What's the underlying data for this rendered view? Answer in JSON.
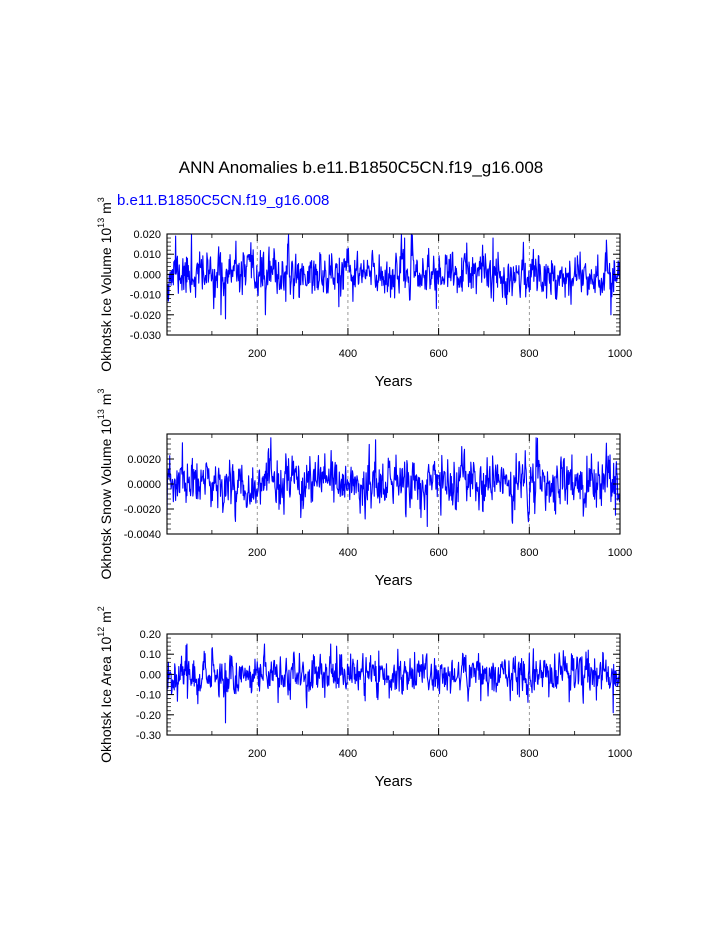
{
  "figure": {
    "title": "ANN Anomalies b.e11.B1850C5CN.f19_g16.008",
    "subtitle": "b.e11.B1850C5CN.f19_g16.008",
    "subtitle_color": "#0000ff",
    "line_color": "#0000ff",
    "grid_color": "#808080"
  },
  "chart_data": [
    {
      "type": "line",
      "ylabel": {
        "before": "Okhotsk Ice Volume 10",
        "exp": "13",
        "mid": " m",
        "exp2": "3"
      },
      "xlabel": "Years",
      "xlim": [
        1,
        1000
      ],
      "ylim": [
        -0.03,
        0.02
      ],
      "xticks": [
        200,
        400,
        600,
        800,
        1000
      ],
      "xtick_labels": [
        "200",
        "400",
        "600",
        "800",
        "1000"
      ],
      "yticks": [
        -0.03,
        -0.02,
        -0.01,
        0.0,
        0.01,
        0.02
      ],
      "ytick_labels": [
        "-0.030",
        "-0.020",
        "-0.010",
        "0.000",
        "0.010",
        "0.020"
      ],
      "grid": "vertical dashed at major x ticks",
      "series": [
        {
          "values": {
            "n": 1000,
            "seed": 11,
            "sd": 0.0055,
            "min": -0.022,
            "max": 0.02,
            "anchors": [
              [
                1,
                -0.014
              ],
              [
                20,
                0.019
              ],
              [
                55,
                0.02
              ],
              [
                120,
                -0.02
              ],
              [
                130,
                -0.022
              ],
              [
                218,
                -0.02
              ],
              [
                380,
                -0.016
              ],
              [
                525,
                0.018
              ],
              [
                720,
                0.018
              ],
              [
                980,
                -0.02
              ]
            ]
          }
        }
      ]
    },
    {
      "type": "line",
      "ylabel": {
        "before": "Okhotsk Snow Volume 10",
        "exp": "13",
        "mid": " m",
        "exp2": "3"
      },
      "xlabel": "Years",
      "xlim": [
        1,
        1000
      ],
      "ylim": [
        -0.004,
        0.004
      ],
      "xticks": [
        200,
        400,
        600,
        800,
        1000
      ],
      "xtick_labels": [
        "200",
        "400",
        "600",
        "800",
        "1000"
      ],
      "yticks": [
        -0.004,
        -0.002,
        0.0,
        0.002
      ],
      "ytick_labels": [
        "-0.0040",
        "-0.0020",
        "0.0000",
        "0.0020"
      ],
      "grid": "vertical dashed at major x ticks",
      "series": [
        {
          "values": {
            "n": 1000,
            "seed": 23,
            "sd": 0.001,
            "min": -0.0034,
            "max": 0.0037,
            "anchors": [
              [
                1,
                -0.0025
              ],
              [
                35,
                0.0033
              ],
              [
                575,
                -0.0034
              ],
              [
                815,
                0.0037
              ],
              [
                990,
                -0.0025
              ]
            ]
          }
        }
      ]
    },
    {
      "type": "line",
      "ylabel": {
        "before": "Okhotsk Ice Area 10",
        "exp": "12",
        "mid": " m",
        "exp2": "2"
      },
      "xlabel": "Years",
      "xlim": [
        1,
        1000
      ],
      "ylim": [
        -0.3,
        0.2
      ],
      "xticks": [
        200,
        400,
        600,
        800,
        1000
      ],
      "xtick_labels": [
        "200",
        "400",
        "600",
        "800",
        "1000"
      ],
      "yticks": [
        -0.3,
        -0.2,
        -0.1,
        0.0,
        0.1,
        0.2
      ],
      "ytick_labels": [
        "-0.30",
        "-0.20",
        "-0.10",
        "0.00",
        "0.10",
        "0.20"
      ],
      "grid": "vertical dashed at major x ticks",
      "series": [
        {
          "values": {
            "n": 1000,
            "seed": 37,
            "sd": 0.05,
            "min": -0.26,
            "max": 0.15,
            "anchors": [
              [
                1,
                -0.12
              ],
              [
                45,
                0.15
              ],
              [
                130,
                -0.24
              ],
              [
                375,
                0.14
              ],
              [
                930,
                0.12
              ],
              [
                985,
                -0.19
              ]
            ]
          }
        }
      ]
    }
  ]
}
